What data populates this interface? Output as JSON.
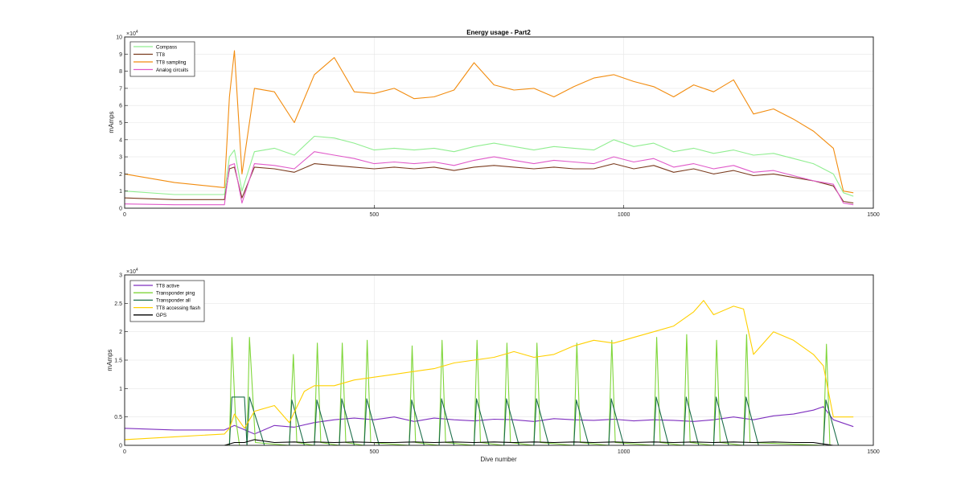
{
  "figure": {
    "background": "#ffffff"
  },
  "chart_data": [
    {
      "type": "line",
      "title": "Energy usage - Part2",
      "xlabel": "",
      "ylabel": "mAmps",
      "y_exponent_label": "×10",
      "y_exponent": "4",
      "xlim": [
        0,
        1500
      ],
      "ylim": [
        0,
        10
      ],
      "y_scale_factor": 10000,
      "xticks": [
        0,
        500,
        1000,
        1500
      ],
      "yticks": [
        0,
        1,
        2,
        3,
        4,
        5,
        6,
        7,
        8,
        9,
        10
      ],
      "grid": true,
      "legend_position": "top-left",
      "series": [
        {
          "name": "Compass",
          "color": "#90ee90",
          "x": [
            0,
            100,
            200,
            210,
            220,
            235,
            260,
            300,
            340,
            380,
            420,
            460,
            500,
            540,
            580,
            620,
            660,
            700,
            740,
            780,
            820,
            860,
            900,
            940,
            980,
            1020,
            1060,
            1100,
            1140,
            1180,
            1220,
            1260,
            1300,
            1340,
            1380,
            1420,
            1440,
            1460
          ],
          "y": [
            1.0,
            0.8,
            0.8,
            3.0,
            3.4,
            1.0,
            3.3,
            3.5,
            3.1,
            4.2,
            4.1,
            3.8,
            3.4,
            3.5,
            3.4,
            3.5,
            3.3,
            3.6,
            3.8,
            3.6,
            3.4,
            3.6,
            3.5,
            3.4,
            4.0,
            3.6,
            3.8,
            3.3,
            3.5,
            3.2,
            3.4,
            3.1,
            3.2,
            2.9,
            2.6,
            2.0,
            0.9,
            0.7
          ]
        },
        {
          "name": "TT8",
          "color": "#7a3b1e",
          "x": [
            0,
            100,
            200,
            210,
            220,
            235,
            260,
            300,
            340,
            380,
            420,
            460,
            500,
            540,
            580,
            620,
            660,
            700,
            740,
            780,
            820,
            860,
            900,
            940,
            980,
            1020,
            1060,
            1100,
            1140,
            1180,
            1220,
            1260,
            1300,
            1340,
            1380,
            1420,
            1440,
            1460
          ],
          "y": [
            0.6,
            0.5,
            0.5,
            2.3,
            2.4,
            0.6,
            2.4,
            2.3,
            2.1,
            2.6,
            2.5,
            2.4,
            2.3,
            2.4,
            2.3,
            2.4,
            2.2,
            2.4,
            2.5,
            2.4,
            2.3,
            2.4,
            2.3,
            2.3,
            2.6,
            2.3,
            2.5,
            2.1,
            2.3,
            2.0,
            2.2,
            1.9,
            2.0,
            1.8,
            1.6,
            1.3,
            0.4,
            0.3
          ]
        },
        {
          "name": "TT8 sampling",
          "color": "#f28c0f",
          "x": [
            0,
            100,
            200,
            210,
            220,
            235,
            260,
            300,
            340,
            380,
            420,
            460,
            500,
            540,
            580,
            620,
            660,
            700,
            740,
            780,
            820,
            860,
            900,
            940,
            980,
            1020,
            1060,
            1100,
            1140,
            1180,
            1220,
            1260,
            1300,
            1340,
            1380,
            1420,
            1440,
            1460
          ],
          "y": [
            2.0,
            1.5,
            1.2,
            6.5,
            9.2,
            2.0,
            7.0,
            6.8,
            5.0,
            7.8,
            8.8,
            6.8,
            6.7,
            7.0,
            6.4,
            6.5,
            6.9,
            8.5,
            7.2,
            6.9,
            7.0,
            6.5,
            7.1,
            7.6,
            7.8,
            7.4,
            7.1,
            6.5,
            7.2,
            6.8,
            7.5,
            5.5,
            5.8,
            5.2,
            4.5,
            3.5,
            1.0,
            0.9
          ]
        },
        {
          "name": "Analog circuits",
          "color": "#e05ac9",
          "x": [
            0,
            100,
            200,
            210,
            220,
            235,
            260,
            300,
            340,
            380,
            420,
            460,
            500,
            540,
            580,
            620,
            660,
            700,
            740,
            780,
            820,
            860,
            900,
            940,
            980,
            1020,
            1060,
            1100,
            1140,
            1180,
            1220,
            1260,
            1300,
            1340,
            1380,
            1420,
            1440,
            1460
          ],
          "y": [
            0.25,
            0.2,
            0.2,
            2.5,
            2.6,
            0.3,
            2.6,
            2.5,
            2.3,
            3.3,
            3.1,
            2.9,
            2.6,
            2.7,
            2.6,
            2.7,
            2.5,
            2.8,
            3.0,
            2.8,
            2.6,
            2.8,
            2.7,
            2.6,
            3.0,
            2.7,
            2.9,
            2.4,
            2.6,
            2.3,
            2.5,
            2.1,
            2.2,
            1.9,
            1.6,
            1.4,
            0.3,
            0.2
          ]
        }
      ]
    },
    {
      "type": "line",
      "title": "",
      "xlabel": "Dive number",
      "ylabel": "mAmps",
      "y_exponent_label": "×10",
      "y_exponent": "4",
      "xlim": [
        0,
        1500
      ],
      "ylim": [
        0,
        3
      ],
      "y_scale_factor": 10000,
      "xticks": [
        0,
        500,
        1000,
        1500
      ],
      "yticks": [
        0,
        0.5,
        1,
        1.5,
        2,
        2.5,
        3
      ],
      "grid": true,
      "legend_position": "top-left",
      "series": [
        {
          "name": "TT8 active",
          "color": "#7e2fbf",
          "x": [
            0,
            100,
            200,
            220,
            260,
            300,
            340,
            380,
            420,
            460,
            500,
            540,
            580,
            620,
            660,
            700,
            740,
            780,
            820,
            860,
            900,
            940,
            980,
            1020,
            1060,
            1100,
            1140,
            1180,
            1220,
            1260,
            1300,
            1340,
            1380,
            1400,
            1420,
            1460
          ],
          "y": [
            0.3,
            0.27,
            0.27,
            0.35,
            0.2,
            0.35,
            0.32,
            0.4,
            0.45,
            0.48,
            0.45,
            0.5,
            0.42,
            0.48,
            0.45,
            0.43,
            0.46,
            0.45,
            0.42,
            0.47,
            0.45,
            0.44,
            0.46,
            0.43,
            0.45,
            0.44,
            0.42,
            0.45,
            0.5,
            0.45,
            0.52,
            0.55,
            0.62,
            0.68,
            0.45,
            0.33
          ]
        },
        {
          "name": "Transponder ping",
          "color": "#7fd63a",
          "x": [
            0,
            100,
            200,
            210,
            215,
            222,
            230,
            245,
            250,
            262,
            330,
            338,
            345,
            380,
            386,
            393,
            430,
            436,
            443,
            480,
            486,
            493,
            570,
            576,
            583,
            630,
            636,
            643,
            700,
            706,
            713,
            760,
            766,
            773,
            820,
            826,
            833,
            900,
            906,
            913,
            970,
            976,
            983,
            1060,
            1066,
            1073,
            1120,
            1126,
            1133,
            1180,
            1186,
            1193,
            1240,
            1246,
            1253,
            1400,
            1406,
            1413,
            1460
          ],
          "y": [
            0.0,
            0.0,
            0.0,
            0.02,
            1.9,
            0.5,
            0.0,
            0.0,
            1.9,
            0.05,
            0.0,
            1.6,
            0.05,
            0.0,
            1.8,
            0.05,
            0.0,
            1.8,
            0.05,
            0.0,
            1.85,
            0.05,
            0.0,
            1.75,
            0.05,
            0.0,
            1.85,
            0.05,
            0.0,
            1.85,
            0.05,
            0.0,
            1.8,
            0.05,
            0.0,
            1.8,
            0.05,
            0.0,
            1.8,
            0.05,
            0.0,
            1.85,
            0.05,
            0.0,
            1.9,
            0.05,
            0.0,
            1.95,
            0.05,
            0.0,
            1.85,
            0.05,
            0.0,
            1.95,
            0.05,
            0.0,
            1.78,
            0.0,
            0.0
          ]
        },
        {
          "name": "Transponder all",
          "color": "#1c6e4a",
          "x": [
            0,
            200,
            210,
            215,
            240,
            245,
            250,
            280,
            330,
            335,
            360,
            380,
            385,
            410,
            430,
            435,
            460,
            480,
            485,
            510,
            570,
            575,
            600,
            630,
            635,
            660,
            700,
            705,
            730,
            760,
            765,
            790,
            820,
            825,
            850,
            900,
            905,
            930,
            970,
            975,
            1000,
            1060,
            1065,
            1090,
            1120,
            1125,
            1150,
            1180,
            1185,
            1210,
            1240,
            1245,
            1270,
            1400,
            1405,
            1430,
            1460
          ],
          "y": [
            0.0,
            0.0,
            0.0,
            0.85,
            0.85,
            0.0,
            0.85,
            0.0,
            0.0,
            0.8,
            0.0,
            0.0,
            0.8,
            0.0,
            0.0,
            0.82,
            0.0,
            0.0,
            0.82,
            0.0,
            0.0,
            0.8,
            0.0,
            0.0,
            0.82,
            0.0,
            0.0,
            0.82,
            0.0,
            0.0,
            0.82,
            0.0,
            0.0,
            0.82,
            0.0,
            0.0,
            0.8,
            0.0,
            0.0,
            0.82,
            0.0,
            0.0,
            0.85,
            0.0,
            0.0,
            0.85,
            0.0,
            0.0,
            0.85,
            0.0,
            0.0,
            0.85,
            0.0,
            0.0,
            0.8,
            0.0,
            0.0
          ]
        },
        {
          "name": "TT8 accessing flash",
          "color": "#ffd000",
          "x": [
            0,
            100,
            200,
            210,
            220,
            240,
            260,
            300,
            330,
            360,
            380,
            420,
            460,
            500,
            540,
            580,
            620,
            660,
            700,
            740,
            780,
            820,
            860,
            900,
            940,
            980,
            1020,
            1060,
            1100,
            1140,
            1160,
            1180,
            1220,
            1240,
            1260,
            1300,
            1340,
            1380,
            1400,
            1420,
            1460
          ],
          "y": [
            0.1,
            0.15,
            0.2,
            0.3,
            0.55,
            0.3,
            0.6,
            0.7,
            0.4,
            0.95,
            1.05,
            1.05,
            1.15,
            1.2,
            1.25,
            1.3,
            1.35,
            1.45,
            1.5,
            1.55,
            1.65,
            1.55,
            1.6,
            1.75,
            1.85,
            1.8,
            1.9,
            2.0,
            2.1,
            2.35,
            2.55,
            2.3,
            2.45,
            2.4,
            1.6,
            2.0,
            1.85,
            1.6,
            1.4,
            0.5,
            0.5
          ]
        },
        {
          "name": "GPS",
          "color": "#000000",
          "x": [
            0,
            100,
            200,
            220,
            240,
            260,
            300,
            340,
            360,
            380,
            420,
            460,
            500,
            540,
            580,
            620,
            660,
            700,
            740,
            780,
            820,
            860,
            900,
            940,
            980,
            1020,
            1060,
            1100,
            1140,
            1180,
            1220,
            1260,
            1300,
            1340,
            1380,
            1420,
            1460
          ],
          "y": [
            0.0,
            0.0,
            0.0,
            0.05,
            0.05,
            0.1,
            0.05,
            0.06,
            0.05,
            0.06,
            0.05,
            0.06,
            0.05,
            0.05,
            0.06,
            0.05,
            0.06,
            0.05,
            0.06,
            0.05,
            0.06,
            0.05,
            0.06,
            0.05,
            0.06,
            0.05,
            0.06,
            0.05,
            0.06,
            0.05,
            0.06,
            0.05,
            0.06,
            0.05,
            0.05,
            0.0,
            0.0
          ]
        }
      ]
    }
  ]
}
